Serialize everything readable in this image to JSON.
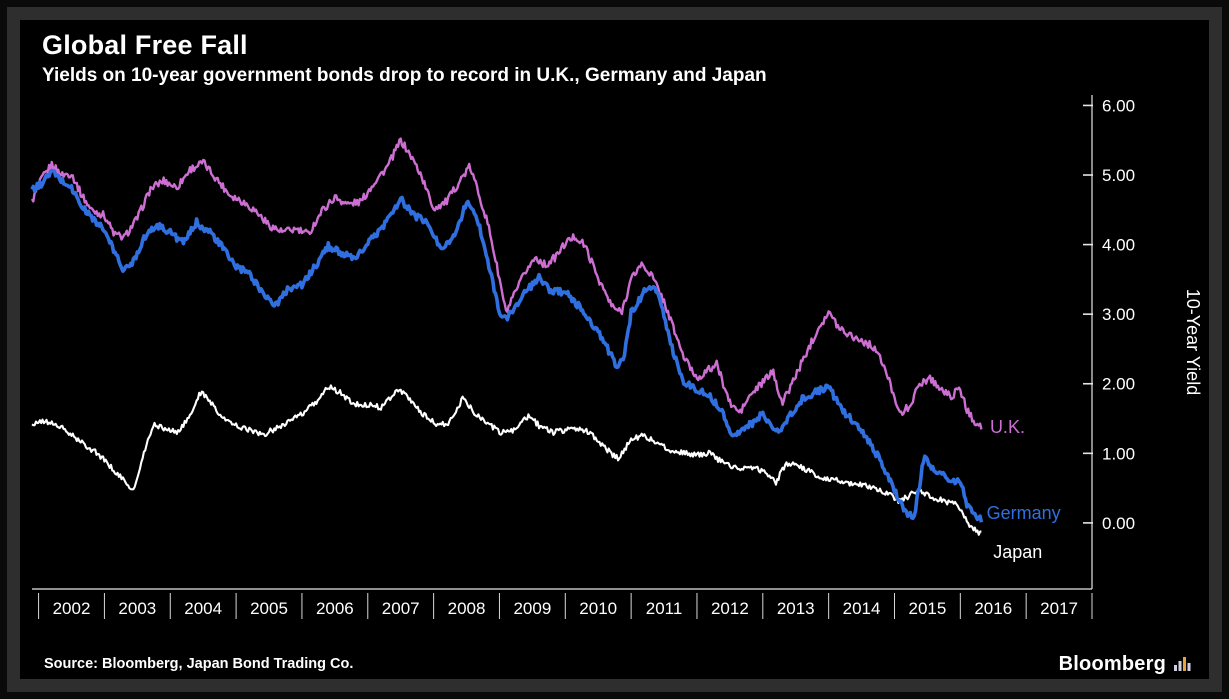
{
  "header": {
    "title": "Global Free Fall",
    "subtitle": "Yields on 10-year government bonds drop to record in U.K., Germany and Japan"
  },
  "footer": {
    "source": "Source: Bloomberg, Japan Bond Trading Co.",
    "brand": "Bloomberg",
    "brand_icon": "bloomberg-logo-icon"
  },
  "chart_data": {
    "type": "line",
    "title": "Global Free Fall",
    "subtitle": "Yields on 10-year government bonds drop to record in U.K., Germany and Japan",
    "xlabel": "",
    "ylabel": "10-Year Yield",
    "grid": false,
    "y_axis_side": "right",
    "legend_position": "end-of-line",
    "xlim": [
      2001.9,
      2018.0
    ],
    "ylim": [
      -0.95,
      6.15
    ],
    "y_ticks": [
      0,
      1,
      2,
      3,
      4,
      5,
      6
    ],
    "y_tick_labels": [
      "0.00",
      "1.00",
      "2.00",
      "3.00",
      "4.00",
      "5.00",
      "6.00"
    ],
    "x_years": [
      2002,
      2003,
      2004,
      2005,
      2006,
      2007,
      2008,
      2009,
      2010,
      2011,
      2012,
      2013,
      2014,
      2015,
      2016,
      2017
    ],
    "series": [
      {
        "name": "U.K.",
        "color": "#cd6ed2",
        "stroke_width": 2.4,
        "label_pos": {
          "x": 2016.45,
          "y": 1.38
        },
        "points": [
          [
            2001.9,
            4.62
          ],
          [
            2002.05,
            4.95
          ],
          [
            2002.2,
            5.15
          ],
          [
            2002.35,
            5.0
          ],
          [
            2002.5,
            5.02
          ],
          [
            2002.65,
            4.72
          ],
          [
            2002.8,
            4.5
          ],
          [
            2003.0,
            4.42
          ],
          [
            2003.15,
            4.15
          ],
          [
            2003.3,
            4.1
          ],
          [
            2003.5,
            4.38
          ],
          [
            2003.7,
            4.8
          ],
          [
            2003.9,
            4.92
          ],
          [
            2004.1,
            4.82
          ],
          [
            2004.3,
            5.08
          ],
          [
            2004.5,
            5.18
          ],
          [
            2004.7,
            4.95
          ],
          [
            2004.9,
            4.72
          ],
          [
            2005.1,
            4.62
          ],
          [
            2005.3,
            4.48
          ],
          [
            2005.5,
            4.28
          ],
          [
            2005.7,
            4.18
          ],
          [
            2005.9,
            4.22
          ],
          [
            2006.1,
            4.15
          ],
          [
            2006.3,
            4.48
          ],
          [
            2006.5,
            4.68
          ],
          [
            2006.7,
            4.58
          ],
          [
            2006.9,
            4.62
          ],
          [
            2007.1,
            4.9
          ],
          [
            2007.3,
            5.12
          ],
          [
            2007.5,
            5.5
          ],
          [
            2007.65,
            5.28
          ],
          [
            2007.8,
            5.02
          ],
          [
            2008.0,
            4.52
          ],
          [
            2008.2,
            4.62
          ],
          [
            2008.4,
            4.92
          ],
          [
            2008.55,
            5.12
          ],
          [
            2008.7,
            4.7
          ],
          [
            2008.85,
            4.2
          ],
          [
            2009.0,
            3.5
          ],
          [
            2009.1,
            3.02
          ],
          [
            2009.25,
            3.32
          ],
          [
            2009.4,
            3.62
          ],
          [
            2009.55,
            3.82
          ],
          [
            2009.7,
            3.7
          ],
          [
            2009.85,
            3.82
          ],
          [
            2010.0,
            4.02
          ],
          [
            2010.15,
            4.12
          ],
          [
            2010.3,
            3.98
          ],
          [
            2010.5,
            3.52
          ],
          [
            2010.7,
            3.12
          ],
          [
            2010.85,
            3.02
          ],
          [
            2011.0,
            3.5
          ],
          [
            2011.15,
            3.72
          ],
          [
            2011.3,
            3.58
          ],
          [
            2011.5,
            3.18
          ],
          [
            2011.65,
            2.78
          ],
          [
            2011.8,
            2.38
          ],
          [
            2012.0,
            2.08
          ],
          [
            2012.15,
            2.18
          ],
          [
            2012.3,
            2.28
          ],
          [
            2012.5,
            1.72
          ],
          [
            2012.65,
            1.58
          ],
          [
            2012.8,
            1.82
          ],
          [
            2013.0,
            2.02
          ],
          [
            2013.15,
            2.18
          ],
          [
            2013.3,
            1.72
          ],
          [
            2013.5,
            2.12
          ],
          [
            2013.7,
            2.52
          ],
          [
            2013.85,
            2.82
          ],
          [
            2014.0,
            3.02
          ],
          [
            2014.15,
            2.82
          ],
          [
            2014.3,
            2.72
          ],
          [
            2014.5,
            2.62
          ],
          [
            2014.7,
            2.52
          ],
          [
            2014.85,
            2.22
          ],
          [
            2015.0,
            1.82
          ],
          [
            2015.1,
            1.55
          ],
          [
            2015.25,
            1.72
          ],
          [
            2015.4,
            2.02
          ],
          [
            2015.55,
            2.08
          ],
          [
            2015.7,
            1.92
          ],
          [
            2015.85,
            1.82
          ],
          [
            2016.0,
            1.92
          ],
          [
            2016.1,
            1.62
          ],
          [
            2016.2,
            1.48
          ],
          [
            2016.32,
            1.38
          ]
        ]
      },
      {
        "name": "Germany",
        "color": "#2f6fe0",
        "stroke_width": 3.6,
        "label_pos": {
          "x": 2016.4,
          "y": 0.14
        },
        "points": [
          [
            2001.9,
            4.78
          ],
          [
            2002.05,
            4.88
          ],
          [
            2002.2,
            5.05
          ],
          [
            2002.35,
            4.92
          ],
          [
            2002.5,
            4.82
          ],
          [
            2002.65,
            4.55
          ],
          [
            2002.8,
            4.4
          ],
          [
            2003.0,
            4.2
          ],
          [
            2003.15,
            3.9
          ],
          [
            2003.3,
            3.62
          ],
          [
            2003.45,
            3.78
          ],
          [
            2003.6,
            4.1
          ],
          [
            2003.8,
            4.28
          ],
          [
            2004.0,
            4.18
          ],
          [
            2004.2,
            4.02
          ],
          [
            2004.4,
            4.32
          ],
          [
            2004.6,
            4.18
          ],
          [
            2004.8,
            3.95
          ],
          [
            2005.0,
            3.68
          ],
          [
            2005.2,
            3.58
          ],
          [
            2005.4,
            3.32
          ],
          [
            2005.6,
            3.12
          ],
          [
            2005.8,
            3.38
          ],
          [
            2006.0,
            3.42
          ],
          [
            2006.2,
            3.68
          ],
          [
            2006.4,
            3.98
          ],
          [
            2006.6,
            3.88
          ],
          [
            2006.8,
            3.78
          ],
          [
            2007.0,
            4.02
          ],
          [
            2007.2,
            4.22
          ],
          [
            2007.5,
            4.65
          ],
          [
            2007.7,
            4.42
          ],
          [
            2007.9,
            4.32
          ],
          [
            2008.1,
            3.95
          ],
          [
            2008.3,
            4.1
          ],
          [
            2008.5,
            4.6
          ],
          [
            2008.65,
            4.42
          ],
          [
            2008.8,
            3.88
          ],
          [
            2009.0,
            3.02
          ],
          [
            2009.1,
            2.92
          ],
          [
            2009.25,
            3.12
          ],
          [
            2009.4,
            3.32
          ],
          [
            2009.6,
            3.52
          ],
          [
            2009.8,
            3.32
          ],
          [
            2010.0,
            3.32
          ],
          [
            2010.2,
            3.12
          ],
          [
            2010.4,
            2.88
          ],
          [
            2010.6,
            2.58
          ],
          [
            2010.8,
            2.22
          ],
          [
            2010.9,
            2.42
          ],
          [
            2011.0,
            3.02
          ],
          [
            2011.2,
            3.32
          ],
          [
            2011.35,
            3.42
          ],
          [
            2011.5,
            2.98
          ],
          [
            2011.65,
            2.42
          ],
          [
            2011.8,
            2.02
          ],
          [
            2012.0,
            1.92
          ],
          [
            2012.2,
            1.82
          ],
          [
            2012.4,
            1.58
          ],
          [
            2012.55,
            1.22
          ],
          [
            2012.7,
            1.38
          ],
          [
            2012.85,
            1.42
          ],
          [
            2013.0,
            1.58
          ],
          [
            2013.2,
            1.28
          ],
          [
            2013.4,
            1.52
          ],
          [
            2013.6,
            1.78
          ],
          [
            2013.8,
            1.88
          ],
          [
            2014.0,
            1.95
          ],
          [
            2014.2,
            1.62
          ],
          [
            2014.4,
            1.45
          ],
          [
            2014.6,
            1.18
          ],
          [
            2014.8,
            0.88
          ],
          [
            2015.0,
            0.48
          ],
          [
            2015.15,
            0.18
          ],
          [
            2015.3,
            0.08
          ],
          [
            2015.45,
            0.95
          ],
          [
            2015.55,
            0.82
          ],
          [
            2015.7,
            0.72
          ],
          [
            2015.85,
            0.58
          ],
          [
            2016.0,
            0.62
          ],
          [
            2016.1,
            0.28
          ],
          [
            2016.2,
            0.16
          ],
          [
            2016.32,
            0.04
          ]
        ]
      },
      {
        "name": "Japan",
        "color": "#ffffff",
        "stroke_width": 2.1,
        "label_pos": {
          "x": 2016.5,
          "y": -0.42
        },
        "points": [
          [
            2001.9,
            1.42
          ],
          [
            2002.1,
            1.46
          ],
          [
            2002.3,
            1.4
          ],
          [
            2002.5,
            1.26
          ],
          [
            2002.7,
            1.12
          ],
          [
            2002.9,
            1.0
          ],
          [
            2003.1,
            0.8
          ],
          [
            2003.3,
            0.6
          ],
          [
            2003.45,
            0.46
          ],
          [
            2003.6,
            1.0
          ],
          [
            2003.75,
            1.42
          ],
          [
            2003.9,
            1.36
          ],
          [
            2004.1,
            1.3
          ],
          [
            2004.3,
            1.52
          ],
          [
            2004.45,
            1.88
          ],
          [
            2004.6,
            1.76
          ],
          [
            2004.8,
            1.5
          ],
          [
            2005.0,
            1.4
          ],
          [
            2005.2,
            1.34
          ],
          [
            2005.4,
            1.26
          ],
          [
            2005.6,
            1.36
          ],
          [
            2005.8,
            1.46
          ],
          [
            2006.0,
            1.56
          ],
          [
            2006.2,
            1.72
          ],
          [
            2006.4,
            1.96
          ],
          [
            2006.6,
            1.86
          ],
          [
            2006.8,
            1.7
          ],
          [
            2007.0,
            1.7
          ],
          [
            2007.2,
            1.66
          ],
          [
            2007.45,
            1.92
          ],
          [
            2007.6,
            1.82
          ],
          [
            2007.8,
            1.6
          ],
          [
            2008.0,
            1.44
          ],
          [
            2008.2,
            1.4
          ],
          [
            2008.45,
            1.8
          ],
          [
            2008.6,
            1.6
          ],
          [
            2008.8,
            1.46
          ],
          [
            2009.0,
            1.3
          ],
          [
            2009.2,
            1.32
          ],
          [
            2009.45,
            1.54
          ],
          [
            2009.6,
            1.4
          ],
          [
            2009.8,
            1.3
          ],
          [
            2010.0,
            1.34
          ],
          [
            2010.2,
            1.36
          ],
          [
            2010.4,
            1.28
          ],
          [
            2010.6,
            1.08
          ],
          [
            2010.8,
            0.92
          ],
          [
            2011.0,
            1.2
          ],
          [
            2011.2,
            1.26
          ],
          [
            2011.4,
            1.14
          ],
          [
            2011.6,
            1.04
          ],
          [
            2011.8,
            1.0
          ],
          [
            2012.0,
            0.98
          ],
          [
            2012.2,
            1.0
          ],
          [
            2012.4,
            0.86
          ],
          [
            2012.6,
            0.8
          ],
          [
            2012.8,
            0.78
          ],
          [
            2013.0,
            0.76
          ],
          [
            2013.2,
            0.58
          ],
          [
            2013.35,
            0.86
          ],
          [
            2013.5,
            0.84
          ],
          [
            2013.7,
            0.74
          ],
          [
            2013.9,
            0.64
          ],
          [
            2014.1,
            0.62
          ],
          [
            2014.3,
            0.58
          ],
          [
            2014.5,
            0.54
          ],
          [
            2014.7,
            0.5
          ],
          [
            2014.9,
            0.42
          ],
          [
            2015.05,
            0.32
          ],
          [
            2015.2,
            0.38
          ],
          [
            2015.35,
            0.46
          ],
          [
            2015.5,
            0.4
          ],
          [
            2015.65,
            0.34
          ],
          [
            2015.8,
            0.3
          ],
          [
            2015.95,
            0.28
          ],
          [
            2016.05,
            0.12
          ],
          [
            2016.15,
            -0.05
          ],
          [
            2016.25,
            -0.12
          ],
          [
            2016.32,
            -0.16
          ]
        ]
      }
    ]
  }
}
